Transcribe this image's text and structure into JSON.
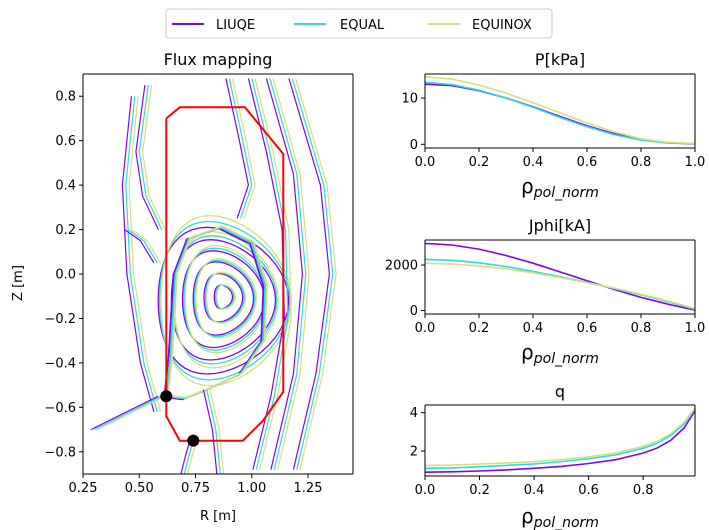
{
  "legend": {
    "placement": "top-center",
    "entries": [
      {
        "label": "LIUQE",
        "color": "#8000ff"
      },
      {
        "label": "EQUAL",
        "color": "#2adddd"
      },
      {
        "label": "EQUINOX",
        "color": "#d4e17a"
      }
    ]
  },
  "chart_data": [
    {
      "type": "line",
      "title": "Flux mapping",
      "xlabel": "R [m]",
      "ylabel": "Z [m]",
      "xlim": [
        0.25,
        1.45
      ],
      "ylim": [
        -0.9,
        0.9
      ],
      "x_ticks": [
        "0.25",
        "0.50",
        "0.75",
        "1.00",
        "1.25"
      ],
      "y_ticks": [
        "0.8",
        "0.6",
        "0.4",
        "0.2",
        "0.0",
        "−0.2",
        "−0.4",
        "−0.6",
        "−0.8"
      ],
      "vessel_color": "#ff0000",
      "vessel": {
        "R": [
          0.62,
          0.68,
          0.97,
          1.14,
          1.14,
          1.05,
          0.96,
          0.68,
          0.62,
          0.62
        ],
        "Z": [
          0.7,
          0.75,
          0.75,
          0.54,
          -0.53,
          -0.66,
          -0.75,
          -0.75,
          -0.64,
          0.7
        ]
      },
      "x_points": [
        {
          "R": 0.62,
          "Z": -0.55
        },
        {
          "R": 0.74,
          "Z": -0.75
        }
      ],
      "magnetic_axis": {
        "R": 0.88,
        "Z": -0.1
      },
      "series": [
        {
          "name": "LIUQE",
          "color": "#8000ff"
        },
        {
          "name": "EQUAL",
          "color": "#2adddd"
        },
        {
          "name": "EQUINOX",
          "color": "#d4e17a"
        }
      ]
    },
    {
      "type": "line",
      "title": "P[kPa]",
      "xlabel": "ρpol_norm",
      "xlim": [
        0.0,
        1.0
      ],
      "ylim": [
        -0.8,
        15.2
      ],
      "x_ticks": [
        "0.0",
        "0.2",
        "0.4",
        "0.6",
        "0.8",
        "1.0"
      ],
      "y_ticks": [
        "10",
        "0"
      ],
      "y_tick_values": [
        10,
        0
      ],
      "x": [
        0.0,
        0.1,
        0.2,
        0.3,
        0.4,
        0.5,
        0.6,
        0.7,
        0.8,
        0.9,
        1.0
      ],
      "series": [
        {
          "name": "LIUQE",
          "color": "#8000ff",
          "values": [
            13.0,
            12.7,
            11.6,
            10.0,
            8.1,
            6.0,
            4.0,
            2.3,
            1.0,
            0.3,
            0.1
          ]
        },
        {
          "name": "EQUAL",
          "color": "#2adddd",
          "values": [
            13.4,
            12.9,
            11.7,
            10.0,
            8.0,
            5.8,
            3.8,
            2.1,
            0.9,
            0.3,
            0.2
          ]
        },
        {
          "name": "EQUINOX",
          "color": "#d4e17a",
          "values": [
            14.6,
            14.1,
            12.8,
            11.1,
            9.0,
            6.8,
            4.6,
            2.7,
            1.2,
            0.4,
            0.2
          ]
        }
      ]
    },
    {
      "type": "line",
      "title": "Jphi[kA]",
      "xlabel": "ρpol_norm",
      "xlim": [
        0.0,
        1.0
      ],
      "ylim": [
        -150,
        3100
      ],
      "x_ticks": [
        "0.0",
        "0.2",
        "0.4",
        "0.6",
        "0.8",
        "1.0"
      ],
      "y_ticks": [
        "2000",
        "0"
      ],
      "y_tick_values": [
        2000,
        0
      ],
      "x": [
        0.0,
        0.1,
        0.2,
        0.3,
        0.4,
        0.5,
        0.6,
        0.7,
        0.8,
        0.9,
        1.0
      ],
      "series": [
        {
          "name": "LIUQE",
          "color": "#8000ff",
          "values": [
            2950,
            2880,
            2700,
            2420,
            2080,
            1700,
            1310,
            930,
            580,
            280,
            20
          ]
        },
        {
          "name": "EQUAL",
          "color": "#2adddd",
          "values": [
            2250,
            2210,
            2100,
            1930,
            1720,
            1490,
            1240,
            970,
            690,
            390,
            60
          ]
        },
        {
          "name": "EQUINOX",
          "color": "#d4e17a",
          "values": [
            2080,
            2040,
            1960,
            1830,
            1660,
            1450,
            1230,
            990,
            720,
            420,
            90
          ]
        }
      ]
    },
    {
      "type": "line",
      "title": "q",
      "xlabel": "ρpol_norm",
      "xlim": [
        0.0,
        0.99
      ],
      "ylim": [
        0.7,
        4.4
      ],
      "x_ticks": [
        "0.0",
        "0.2",
        "0.4",
        "0.6",
        "0.8"
      ],
      "y_ticks": [
        "4",
        "2"
      ],
      "y_tick_values": [
        4,
        2
      ],
      "x": [
        0.0,
        0.1,
        0.2,
        0.3,
        0.4,
        0.5,
        0.6,
        0.7,
        0.8,
        0.85,
        0.9,
        0.95,
        0.99
      ],
      "series": [
        {
          "name": "LIUQE",
          "color": "#8000ff",
          "values": [
            0.9,
            0.92,
            0.96,
            1.02,
            1.1,
            1.2,
            1.35,
            1.55,
            1.9,
            2.15,
            2.55,
            3.2,
            4.1
          ]
        },
        {
          "name": "EQUAL",
          "color": "#2adddd",
          "values": [
            1.1,
            1.12,
            1.18,
            1.25,
            1.33,
            1.45,
            1.6,
            1.8,
            2.15,
            2.4,
            2.8,
            3.4,
            4.2
          ]
        },
        {
          "name": "EQUINOX",
          "color": "#d4e17a",
          "values": [
            1.25,
            1.27,
            1.32,
            1.38,
            1.45,
            1.56,
            1.7,
            1.9,
            2.25,
            2.5,
            2.9,
            3.5,
            4.25
          ]
        }
      ]
    }
  ]
}
